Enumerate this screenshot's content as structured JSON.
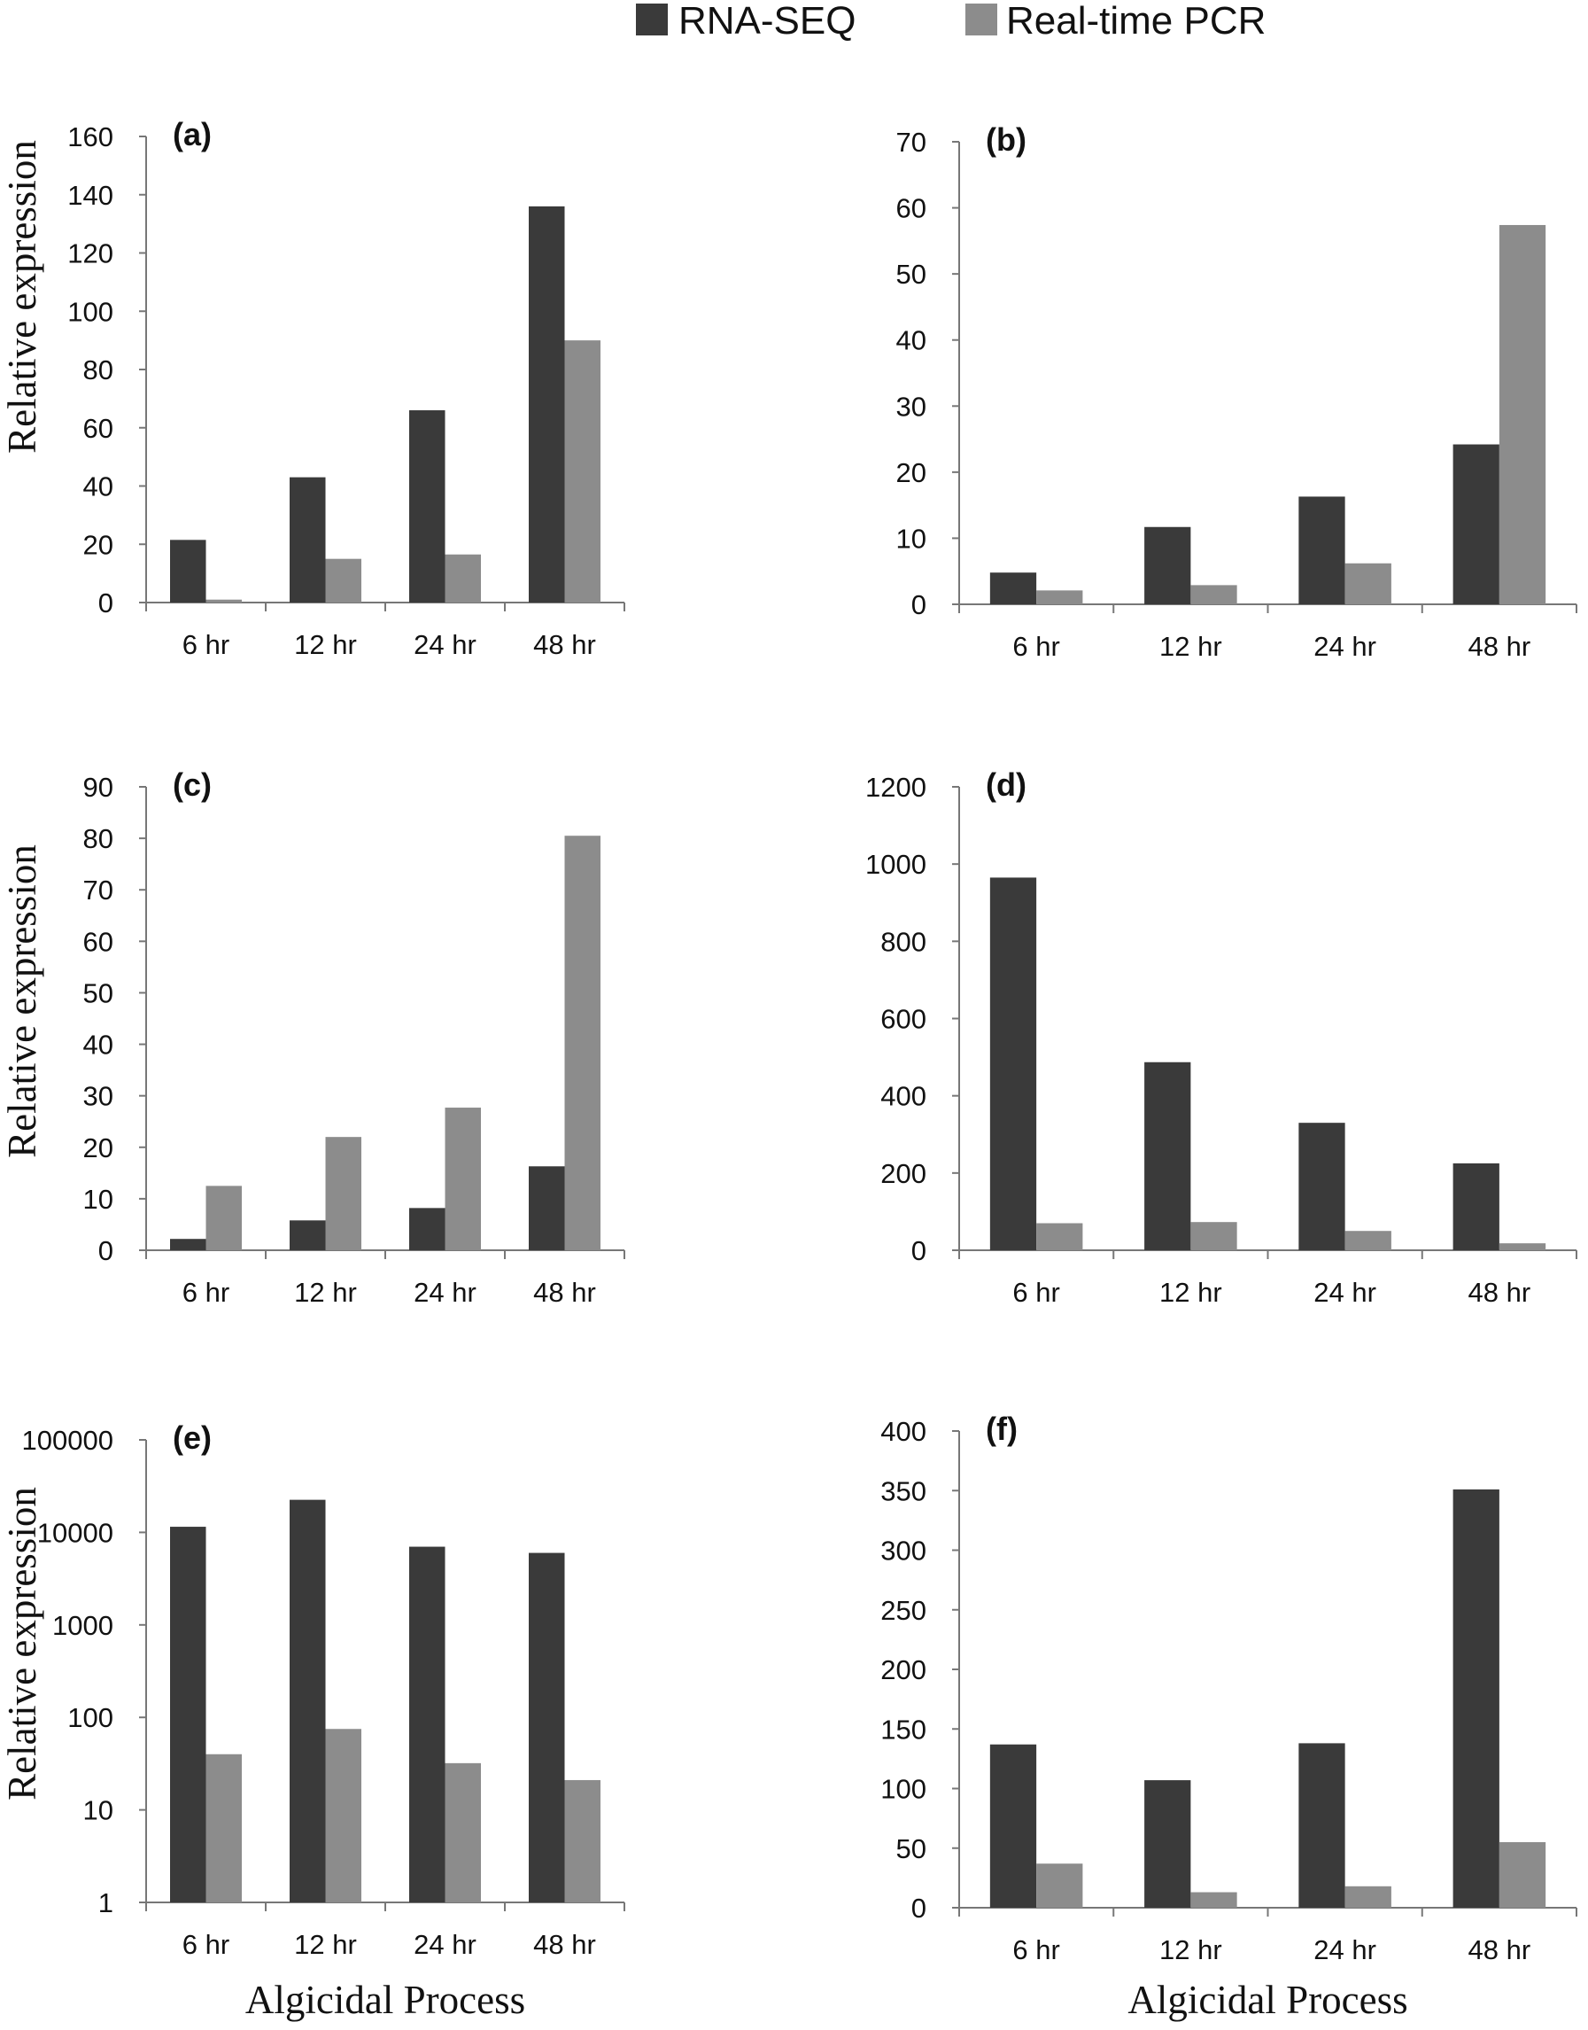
{
  "legend": {
    "items": [
      {
        "name": "RNA-SEQ",
        "color": "#3a3a3a"
      },
      {
        "name": "Real-time PCR",
        "color": "#8c8c8c"
      }
    ]
  },
  "chart_data": [
    {
      "type": "bar",
      "panel_label": "(a)",
      "categories": [
        "6 hr",
        "12 hr",
        "24 hr",
        "48 hr"
      ],
      "series": [
        {
          "name": "RNA-SEQ",
          "values": [
            21.5,
            43,
            66,
            136
          ]
        },
        {
          "name": "Real-time PCR",
          "values": [
            1,
            15,
            16.5,
            90
          ]
        }
      ],
      "ylabel": "Relative expression",
      "xlabel": "",
      "ylim": [
        0,
        160
      ],
      "yticks": [
        0,
        20,
        40,
        60,
        80,
        100,
        120,
        140,
        160
      ],
      "yscale": "linear"
    },
    {
      "type": "bar",
      "panel_label": "(b)",
      "categories": [
        "6 hr",
        "12 hr",
        "24 hr",
        "48 hr"
      ],
      "series": [
        {
          "name": "RNA-SEQ",
          "values": [
            4.8,
            11.7,
            16.3,
            24.2
          ]
        },
        {
          "name": "Real-time PCR",
          "values": [
            2.1,
            2.9,
            6.2,
            57.4
          ]
        }
      ],
      "ylabel": "",
      "xlabel": "",
      "ylim": [
        0,
        70
      ],
      "yticks": [
        0,
        10,
        20,
        30,
        40,
        50,
        60,
        70
      ],
      "yscale": "linear"
    },
    {
      "type": "bar",
      "panel_label": "(c)",
      "categories": [
        "6 hr",
        "12 hr",
        "24 hr",
        "48 hr"
      ],
      "series": [
        {
          "name": "RNA-SEQ",
          "values": [
            2.2,
            5.8,
            8.2,
            16.3
          ]
        },
        {
          "name": "Real-time PCR",
          "values": [
            12.5,
            22,
            27.7,
            80.5
          ]
        }
      ],
      "ylabel": "Relative expression",
      "xlabel": "",
      "ylim": [
        0,
        90
      ],
      "yticks": [
        0,
        10,
        20,
        30,
        40,
        50,
        60,
        70,
        80,
        90
      ],
      "yscale": "linear"
    },
    {
      "type": "bar",
      "panel_label": "(d)",
      "categories": [
        "6 hr",
        "12 hr",
        "24 hr",
        "48 hr"
      ],
      "series": [
        {
          "name": "RNA-SEQ",
          "values": [
            965,
            487,
            330,
            225
          ]
        },
        {
          "name": "Real-time PCR",
          "values": [
            70,
            73,
            50,
            18
          ]
        }
      ],
      "ylabel": "",
      "xlabel": "",
      "ylim": [
        0,
        1200
      ],
      "yticks": [
        0,
        200,
        400,
        600,
        800,
        1000,
        1200
      ],
      "yscale": "linear"
    },
    {
      "type": "bar",
      "panel_label": "(e)",
      "categories": [
        "6 hr",
        "12 hr",
        "24 hr",
        "48 hr"
      ],
      "series": [
        {
          "name": "RNA-SEQ",
          "values": [
            11500,
            22500,
            7000,
            6000
          ]
        },
        {
          "name": "Real-time PCR",
          "values": [
            40,
            75,
            32,
            21
          ]
        }
      ],
      "ylabel": "Relative expression",
      "xlabel": "Algicidal Process",
      "ylim": [
        1,
        100000
      ],
      "yticks": [
        1,
        10,
        100,
        1000,
        10000,
        100000
      ],
      "yscale": "log"
    },
    {
      "type": "bar",
      "panel_label": "(f)",
      "categories": [
        "6 hr",
        "12 hr",
        "24 hr",
        "48 hr"
      ],
      "series": [
        {
          "name": "RNA-SEQ",
          "values": [
            137,
            107,
            138,
            351
          ]
        },
        {
          "name": "Real-time PCR",
          "values": [
            37,
            13,
            18,
            55
          ]
        }
      ],
      "ylabel": "",
      "xlabel": "Algicidal Process",
      "ylim": [
        0,
        400
      ],
      "yticks": [
        0,
        50,
        100,
        150,
        200,
        250,
        300,
        350,
        400
      ],
      "yscale": "linear"
    }
  ]
}
